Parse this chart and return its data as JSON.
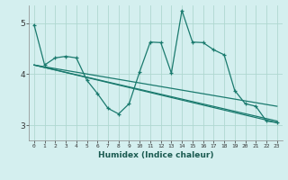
{
  "xlabel": "Humidex (Indice chaleur)",
  "ylabel": "",
  "bg_color": "#d4efef",
  "grid_color": "#afd8d0",
  "line_color": "#1a7a6e",
  "x_ticks": [
    0,
    1,
    2,
    3,
    4,
    5,
    6,
    7,
    8,
    9,
    10,
    11,
    12,
    13,
    14,
    15,
    16,
    17,
    18,
    19,
    20,
    21,
    22,
    23
  ],
  "y_ticks": [
    3,
    4,
    5
  ],
  "ylim": [
    2.7,
    5.35
  ],
  "xlim": [
    -0.5,
    23.5
  ],
  "series1": [
    4.97,
    4.18,
    4.32,
    4.35,
    4.32,
    3.88,
    3.62,
    3.33,
    3.22,
    3.42,
    4.05,
    4.63,
    4.62,
    4.02,
    5.25,
    4.63,
    4.62,
    4.48,
    4.38,
    3.68,
    3.42,
    3.37,
    3.08,
    3.05
  ],
  "series2_y": [
    4.18,
    3.37
  ],
  "series3_y": [
    4.18,
    3.08
  ],
  "series4_y": [
    4.18,
    3.05
  ],
  "trend_x": [
    0,
    23
  ]
}
